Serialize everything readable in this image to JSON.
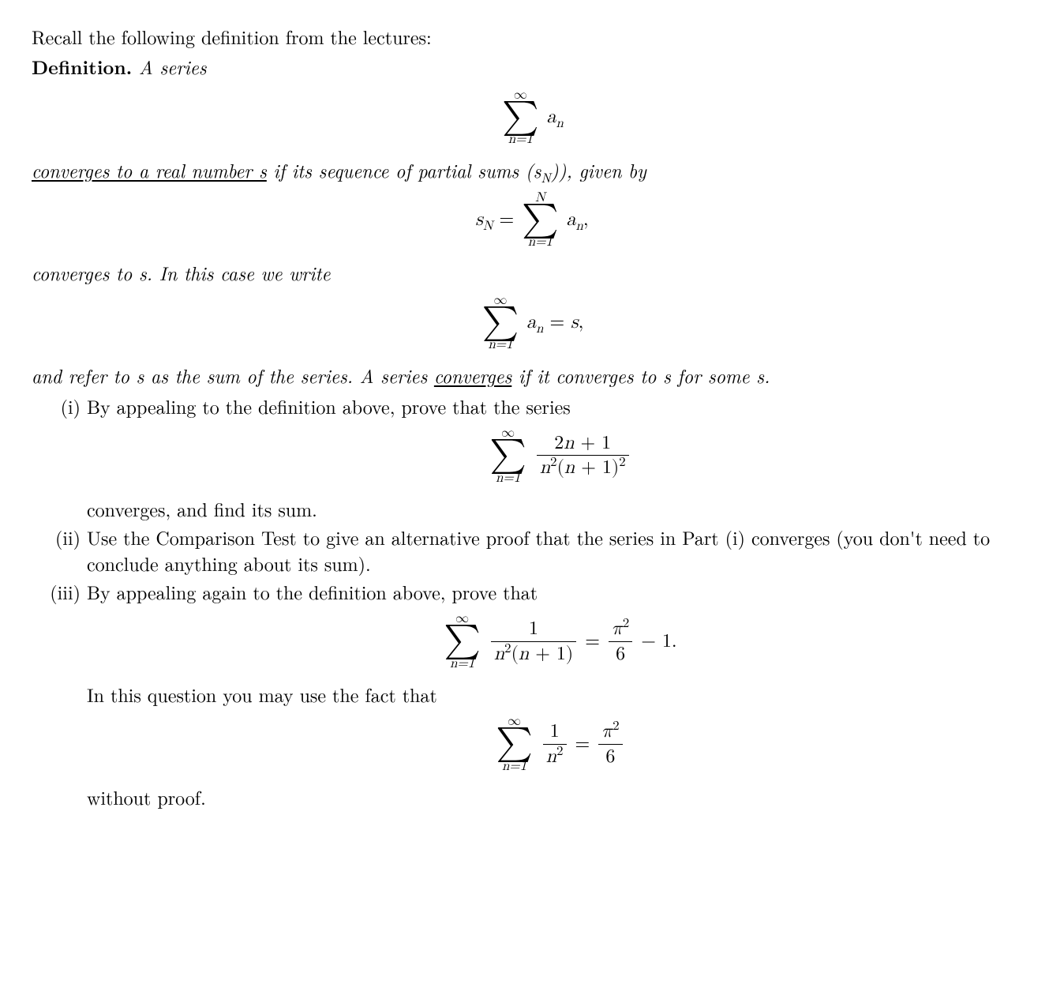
{
  "background_color": "#ffffff",
  "text_color": "#000000",
  "base_fontsize": 24,
  "intro": "Recall the following definition from the lectures:",
  "def_label": "Definition.",
  "def_tail": " A series",
  "display1": {
    "sum_top": "∞",
    "sum_bot": "n=1",
    "term": "aₙ"
  },
  "def_line2_a": "converges to a real number s",
  "def_line2_b": " if its sequence of partial sums ",
  "def_line2_c": "(s",
  "def_line2_c_sub": "N",
  "def_line2_d": "), given by",
  "display2": {
    "lhs_base": "s",
    "lhs_sub": "N",
    "eq": " = ",
    "sum_top": "N",
    "sum_bot": "n=1",
    "term": "aₙ,"
  },
  "def_line3": "converges to s.  In this case we write",
  "display3": {
    "sum_top": "∞",
    "sum_bot": "n=1",
    "term": "aₙ = s,"
  },
  "def_line4_a": "and refer to s as the sum of the series.  A series ",
  "def_line4_b": "converges",
  "def_line4_c": " if it converges to s for some s.",
  "items": {
    "i": {
      "marker": "(i)",
      "text": "By appealing to the definition above, prove that the series",
      "display": {
        "sum_top": "∞",
        "sum_bot": "n=1",
        "num": "2n + 1",
        "den": "n²(n + 1)²"
      },
      "after": "converges, and find its sum."
    },
    "ii": {
      "marker": "(ii)",
      "text": "Use the Comparison Test to give an alternative proof that the series in Part (i) converges (you don't need to conclude anything about its sum)."
    },
    "iii": {
      "marker": "(iii)",
      "text": "By appealing again to the definition above, prove that",
      "display": {
        "sum_top": "∞",
        "sum_bot": "n=1",
        "num": "1",
        "den": "n²(n + 1)",
        "eq": " = ",
        "rhs_num": "π²",
        "rhs_den": "6",
        "tail": " − 1."
      },
      "after1": "In this question you may use the fact that",
      "display2": {
        "sum_top": "∞",
        "sum_bot": "n=1",
        "num": "1",
        "den": "n²",
        "eq": " = ",
        "rhs_num": "π²",
        "rhs_den": "6"
      },
      "after2": "without proof."
    }
  }
}
